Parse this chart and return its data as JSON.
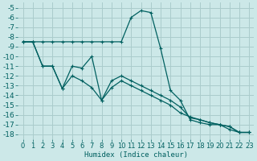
{
  "bg_color": "#cce8e8",
  "grid_color": "#aacccc",
  "line_color": "#006060",
  "xlabel": "Humidex (Indice chaleur)",
  "xlim": [
    -0.5,
    23.5
  ],
  "ylim": [
    -18.5,
    -4.5
  ],
  "xticks": [
    0,
    1,
    2,
    3,
    4,
    5,
    6,
    7,
    8,
    9,
    10,
    11,
    12,
    13,
    14,
    15,
    16,
    17,
    18,
    19,
    20,
    21,
    22,
    23
  ],
  "yticks": [
    -5,
    -6,
    -7,
    -8,
    -9,
    -10,
    -11,
    -12,
    -13,
    -14,
    -15,
    -16,
    -17,
    -18
  ],
  "series1_y": [
    -8.5,
    -8.5,
    -8.5,
    -8.5,
    -8.5,
    -8.5,
    -8.5,
    -8.5,
    -8.5,
    -8.5,
    -8.5,
    -6.0,
    -5.3,
    -5.5,
    -9.2,
    -13.5,
    -14.5,
    -16.5,
    -16.8,
    -17.0,
    -17.0,
    -17.5,
    -17.8,
    -17.8
  ],
  "series2_y": [
    -8.5,
    -8.5,
    -11.0,
    -11.0,
    -13.3,
    -11.0,
    -11.2,
    -10.0,
    -14.5,
    -12.5,
    -12.0,
    -12.5,
    -13.0,
    -13.5,
    -14.0,
    -14.5,
    -15.2,
    -16.3,
    -16.5,
    -16.8,
    -17.0,
    -17.2,
    -17.8,
    -17.8
  ],
  "series3_y": [
    -8.5,
    -8.5,
    -11.0,
    -11.0,
    -13.3,
    -12.0,
    -12.5,
    -13.2,
    -14.5,
    -13.2,
    -12.5,
    -13.0,
    -13.5,
    -14.0,
    -14.5,
    -15.0,
    -15.8,
    -16.2,
    -16.5,
    -16.8,
    -17.0,
    -17.2,
    -17.8,
    -17.8
  ],
  "font_color": "#006060",
  "font_size": 6.5
}
